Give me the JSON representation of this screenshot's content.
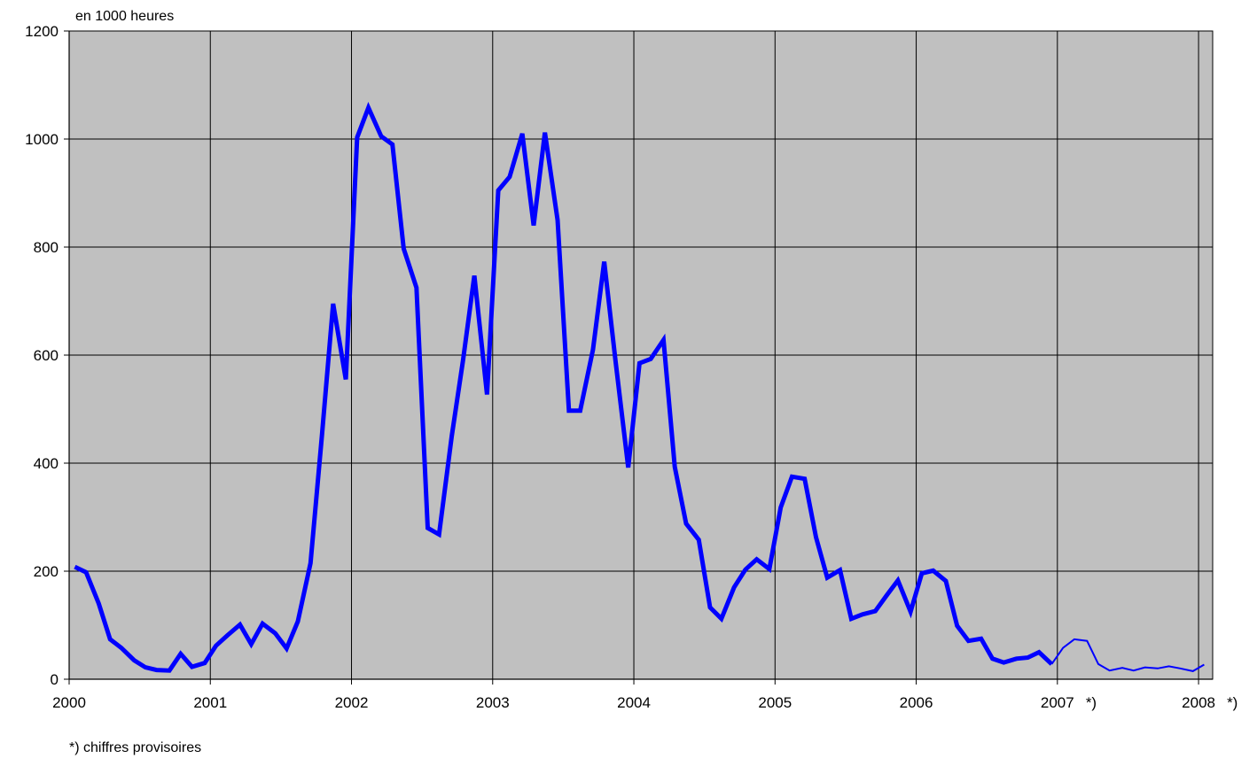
{
  "chart_data": {
    "type": "line",
    "title": "",
    "unit_label": "en 1000 heures",
    "xlabel": "",
    "ylabel": "",
    "ylim": [
      0,
      1200
    ],
    "yticks": [
      0,
      200,
      400,
      600,
      800,
      1000,
      1200
    ],
    "xlim": [
      2000,
      2008.1
    ],
    "xticks": [
      {
        "value": 2000,
        "label": "2000"
      },
      {
        "value": 2001,
        "label": "2001"
      },
      {
        "value": 2002,
        "label": "2002"
      },
      {
        "value": 2003,
        "label": "2003"
      },
      {
        "value": 2004,
        "label": "2004"
      },
      {
        "value": 2005,
        "label": "2005"
      },
      {
        "value": 2006,
        "label": "2006"
      },
      {
        "value": 2007,
        "label": "2007"
      },
      {
        "value": 2008,
        "label": "2008"
      }
    ],
    "provisional_marks": [
      {
        "after_label": "2007",
        "text": "*)"
      },
      {
        "after_label": "2008",
        "text": "*)"
      }
    ],
    "grid": true,
    "legend": "none",
    "background_color": "#c0c0c0",
    "line_color": "#0000ff",
    "series": [
      {
        "style": "final",
        "x": [
          2000.04,
          2000.12,
          2000.21,
          2000.29,
          2000.37,
          2000.46,
          2000.54,
          2000.62,
          2000.71,
          2000.79,
          2000.87,
          2000.96,
          2001.04,
          2001.12,
          2001.21,
          2001.29,
          2001.37,
          2001.46,
          2001.54,
          2001.62,
          2001.71,
          2001.79,
          2001.87,
          2001.96,
          2002.04,
          2002.12,
          2002.21,
          2002.29,
          2002.37,
          2002.46,
          2002.54,
          2002.62,
          2002.71,
          2002.79,
          2002.87,
          2002.96,
          2003.04,
          2003.12,
          2003.21,
          2003.29,
          2003.37,
          2003.46,
          2003.54,
          2003.62,
          2003.71,
          2003.79,
          2003.87,
          2003.96,
          2004.04,
          2004.12,
          2004.21,
          2004.29,
          2004.37,
          2004.46,
          2004.54,
          2004.62,
          2004.71,
          2004.79,
          2004.87,
          2004.96,
          2005.04,
          2005.12,
          2005.21,
          2005.29,
          2005.37,
          2005.46,
          2005.54,
          2005.62,
          2005.71,
          2005.79,
          2005.87,
          2005.96,
          2006.04,
          2006.12,
          2006.21,
          2006.29,
          2006.37,
          2006.46,
          2006.54,
          2006.62,
          2006.71,
          2006.79,
          2006.87,
          2006.96
        ],
        "values": [
          208,
          198,
          140,
          74,
          58,
          35,
          22,
          17,
          16,
          47,
          23,
          30,
          62,
          81,
          101,
          65,
          103,
          85,
          57,
          107,
          215,
          450,
          695,
          555,
          1003,
          1058,
          1005,
          990,
          797,
          725,
          280,
          268,
          450,
          590,
          747,
          527,
          905,
          930,
          1010,
          840,
          1012,
          850,
          497,
          497,
          610,
          773,
          590,
          392,
          585,
          593,
          628,
          393,
          288,
          258,
          133,
          112,
          170,
          203,
          222,
          204,
          318,
          375,
          371,
          263,
          188,
          202,
          112,
          120,
          126,
          155,
          183,
          125,
          196,
          201,
          182,
          99,
          71,
          75,
          38,
          31,
          38,
          40,
          50,
          28
        ]
      },
      {
        "style": "provisional",
        "x": [
          2006.96,
          2007.04,
          2007.12,
          2007.21,
          2007.29,
          2007.37,
          2007.46,
          2007.54,
          2007.62,
          2007.71,
          2007.79,
          2007.87,
          2007.96,
          2008.04
        ],
        "values": [
          28,
          58,
          74,
          71,
          28,
          16,
          21,
          16,
          22,
          20,
          24,
          20,
          15,
          27
        ]
      }
    ],
    "footnote": "*) chiffres provisoires"
  }
}
